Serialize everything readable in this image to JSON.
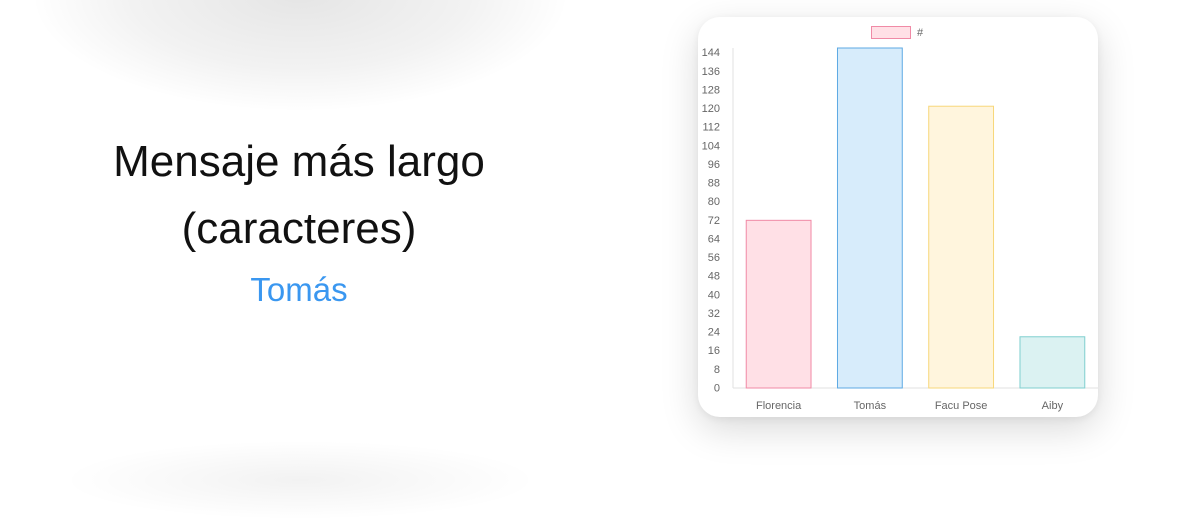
{
  "stat": {
    "title_line1": "Mensaje más largo",
    "title_line2": "(caracteres)",
    "winner": "Tomás"
  },
  "colors": {
    "winner": "#3a97f0",
    "bar_fills": [
      "#ffe0e6",
      "#d7ecfb",
      "#fff5dd",
      "#dbf2f2"
    ],
    "bar_strokes": [
      "#f08aa6",
      "#5da9e3",
      "#f7d77a",
      "#7fcfcf"
    ]
  },
  "chart_data": {
    "type": "bar",
    "categories": [
      "Florencia",
      "Tomás",
      "Facu Pose",
      "Aiby"
    ],
    "series": [
      {
        "name": "#",
        "values": [
          72,
          146,
          121,
          22
        ]
      }
    ],
    "legend": "top-center",
    "ylim": [
      0,
      146
    ],
    "yticks": [
      0,
      8,
      16,
      24,
      32,
      40,
      48,
      56,
      64,
      72,
      80,
      88,
      96,
      104,
      112,
      120,
      128,
      136,
      144
    ],
    "xlabel": "",
    "ylabel": "",
    "grid": false
  }
}
